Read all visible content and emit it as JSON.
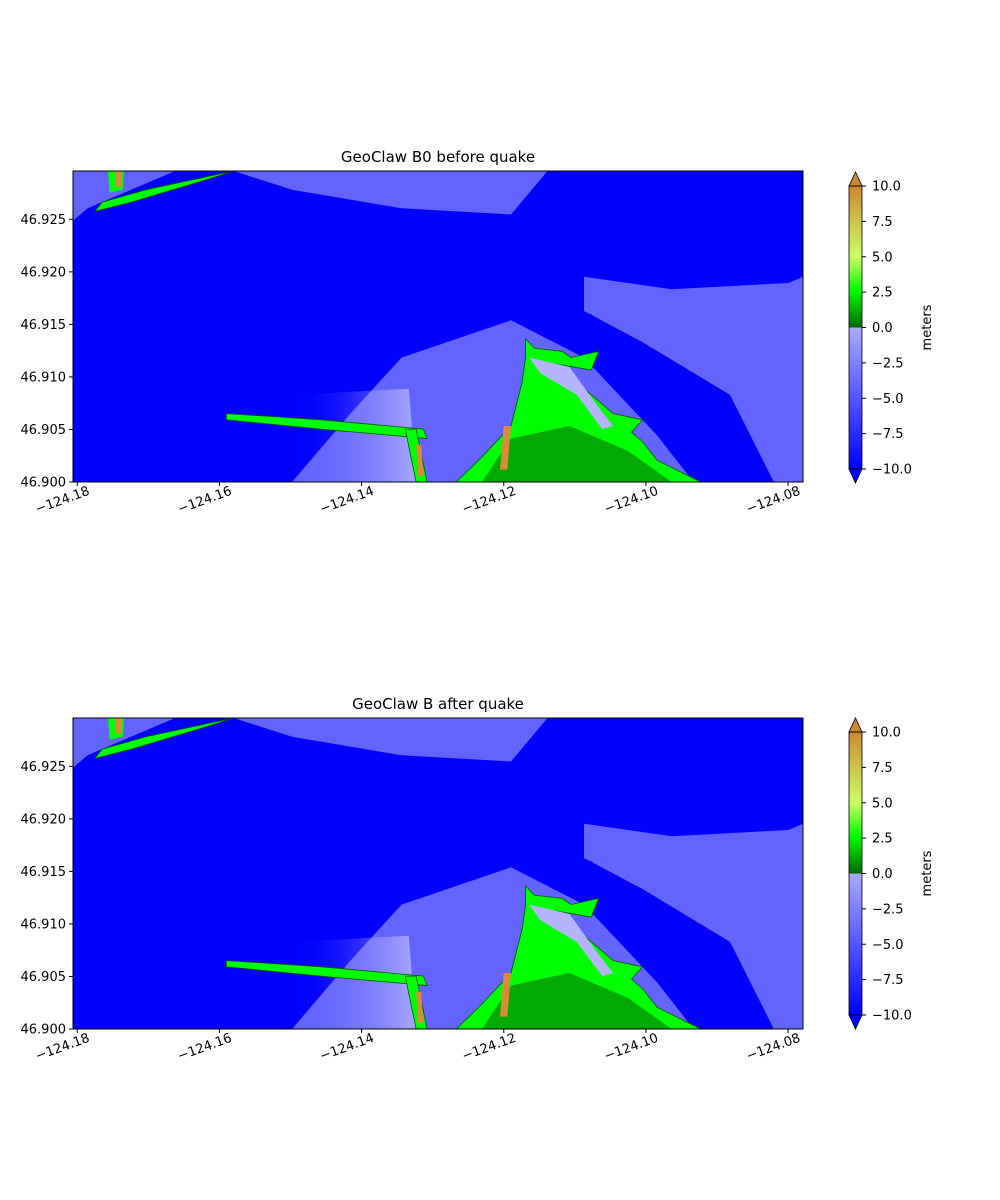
{
  "chart_data": [
    {
      "type": "heatmap",
      "title": "GeoClaw B0 before quake",
      "xlim": [
        -124.1806,
        -124.0779
      ],
      "ylim": [
        46.9,
        46.9296
      ],
      "x_ticks": [
        -124.18,
        -124.16,
        -124.14,
        -124.12,
        -124.1,
        -124.08
      ],
      "x_tick_labels": [
        "−124.18",
        "−124.16",
        "−124.14",
        "−124.12",
        "−124.10",
        "−124.08"
      ],
      "y_ticks": [
        46.9,
        46.905,
        46.91,
        46.915,
        46.92,
        46.925
      ],
      "y_tick_labels": [
        "46.900",
        "46.905",
        "46.910",
        "46.915",
        "46.920",
        "46.925"
      ],
      "colorbar": {
        "label": "meters",
        "range": [
          -10,
          10
        ],
        "extend": "both",
        "ticks": [
          10.0,
          7.5,
          5.0,
          2.5,
          0.0,
          -2.5,
          -5.0,
          -7.5,
          -10.0
        ],
        "tick_labels": [
          "10.0",
          "7.5",
          "5.0",
          "2.5",
          "0.0",
          "−2.5",
          "−5.0",
          "−7.5",
          "−10.0"
        ],
        "water_colors": [
          "#0000ff",
          "#aaaaff"
        ],
        "land_colors": [
          "#006600",
          "#00ff00",
          "#ccff66",
          "#cc8833"
        ]
      },
      "color_water_deep": "#0000ff",
      "color_water_shallow": "#b4b4ff",
      "color_land_low": "#00aa00",
      "color_land_mid": "#00ff00",
      "color_land_high": "#d88c3a"
    },
    {
      "type": "heatmap",
      "title": "GeoClaw B after quake",
      "xlim": [
        -124.1806,
        -124.0779
      ],
      "ylim": [
        46.9,
        46.9296
      ],
      "x_ticks": [
        -124.18,
        -124.16,
        -124.14,
        -124.12,
        -124.1,
        -124.08
      ],
      "x_tick_labels": [
        "−124.18",
        "−124.16",
        "−124.14",
        "−124.12",
        "−124.10",
        "−124.08"
      ],
      "y_ticks": [
        46.9,
        46.905,
        46.91,
        46.915,
        46.92,
        46.925
      ],
      "y_tick_labels": [
        "46.900",
        "46.905",
        "46.910",
        "46.915",
        "46.920",
        "46.925"
      ],
      "colorbar": {
        "label": "meters",
        "range": [
          -10,
          10
        ],
        "extend": "both",
        "ticks": [
          10.0,
          7.5,
          5.0,
          2.5,
          0.0,
          -2.5,
          -5.0,
          -7.5,
          -10.0
        ],
        "tick_labels": [
          "10.0",
          "7.5",
          "5.0",
          "2.5",
          "0.0",
          "−2.5",
          "−5.0",
          "−7.5",
          "−10.0"
        ],
        "water_colors": [
          "#0000ff",
          "#aaaaff"
        ],
        "land_colors": [
          "#006600",
          "#00ff00",
          "#ccff66",
          "#cc8833"
        ]
      },
      "color_water_deep": "#0000ff",
      "color_water_shallow": "#b4b4ff",
      "color_land_low": "#00aa00",
      "color_land_mid": "#00ff00",
      "color_land_high": "#d88c3a"
    }
  ]
}
